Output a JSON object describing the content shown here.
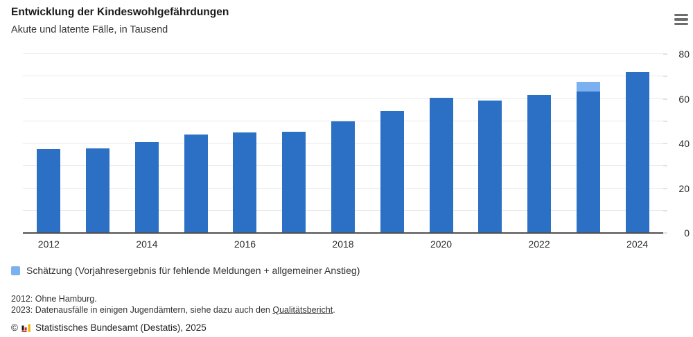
{
  "header": {
    "menu_icon": "hamburger-icon"
  },
  "chart_data": {
    "type": "bar",
    "title": "Entwicklung der Kindeswohlgefährdungen",
    "subtitle": "Akute und latente Fälle, in Tausend",
    "unit": "Tausend",
    "stacked": true,
    "grid": true,
    "categories": [
      "2012",
      "2013",
      "2014",
      "2015",
      "2016",
      "2017",
      "2018",
      "2019",
      "2020",
      "2021",
      "2022",
      "2023",
      "2024"
    ],
    "series": [
      {
        "name": "Akute und latente Fälle",
        "color": "#2b70c4",
        "values": [
          37.4,
          37.8,
          40.5,
          44.0,
          45.1,
          45.2,
          49.8,
          54.5,
          60.5,
          59.2,
          61.8,
          63.3,
          71.9
        ]
      },
      {
        "name": "Schätzung (Vorjahresergebnis für fehlende Meldungen + allgemeiner Anstieg)",
        "color": "#7bb1f1",
        "values": [
          0,
          0,
          0,
          0,
          0,
          0,
          0,
          0,
          0,
          0,
          0,
          4.2,
          0
        ]
      }
    ],
    "ylim": [
      0,
      82.5
    ],
    "yticks": [
      0,
      10,
      20,
      30,
      40,
      50,
      60,
      70,
      80
    ],
    "ytick_labels": [
      "0",
      "20",
      "40",
      "60",
      "80"
    ],
    "xtick_labels": [
      "2012",
      "2014",
      "2016",
      "2018",
      "2020",
      "2022",
      "2024"
    ],
    "axis_color": "#4f4f4f",
    "grid_color": "#e9e9e9",
    "legend_position": "bottom"
  },
  "legend": {
    "swatch_color": "#7bb1f1",
    "label": "Schätzung (Vorjahresergebnis für fehlende Meldungen + allgemeiner Anstieg)"
  },
  "footnotes": {
    "line1": "2012: Ohne Hamburg.",
    "line2_prefix": "2023: Datenausfälle in einigen Jugendämtern, siehe dazu auch den ",
    "line2_link": "Qualitätsbericht",
    "line2_suffix": "."
  },
  "copyright": {
    "symbol": "©",
    "logo_icon": "destatis-logo-icon",
    "text": "Statistisches Bundesamt (Destatis), 2025"
  }
}
